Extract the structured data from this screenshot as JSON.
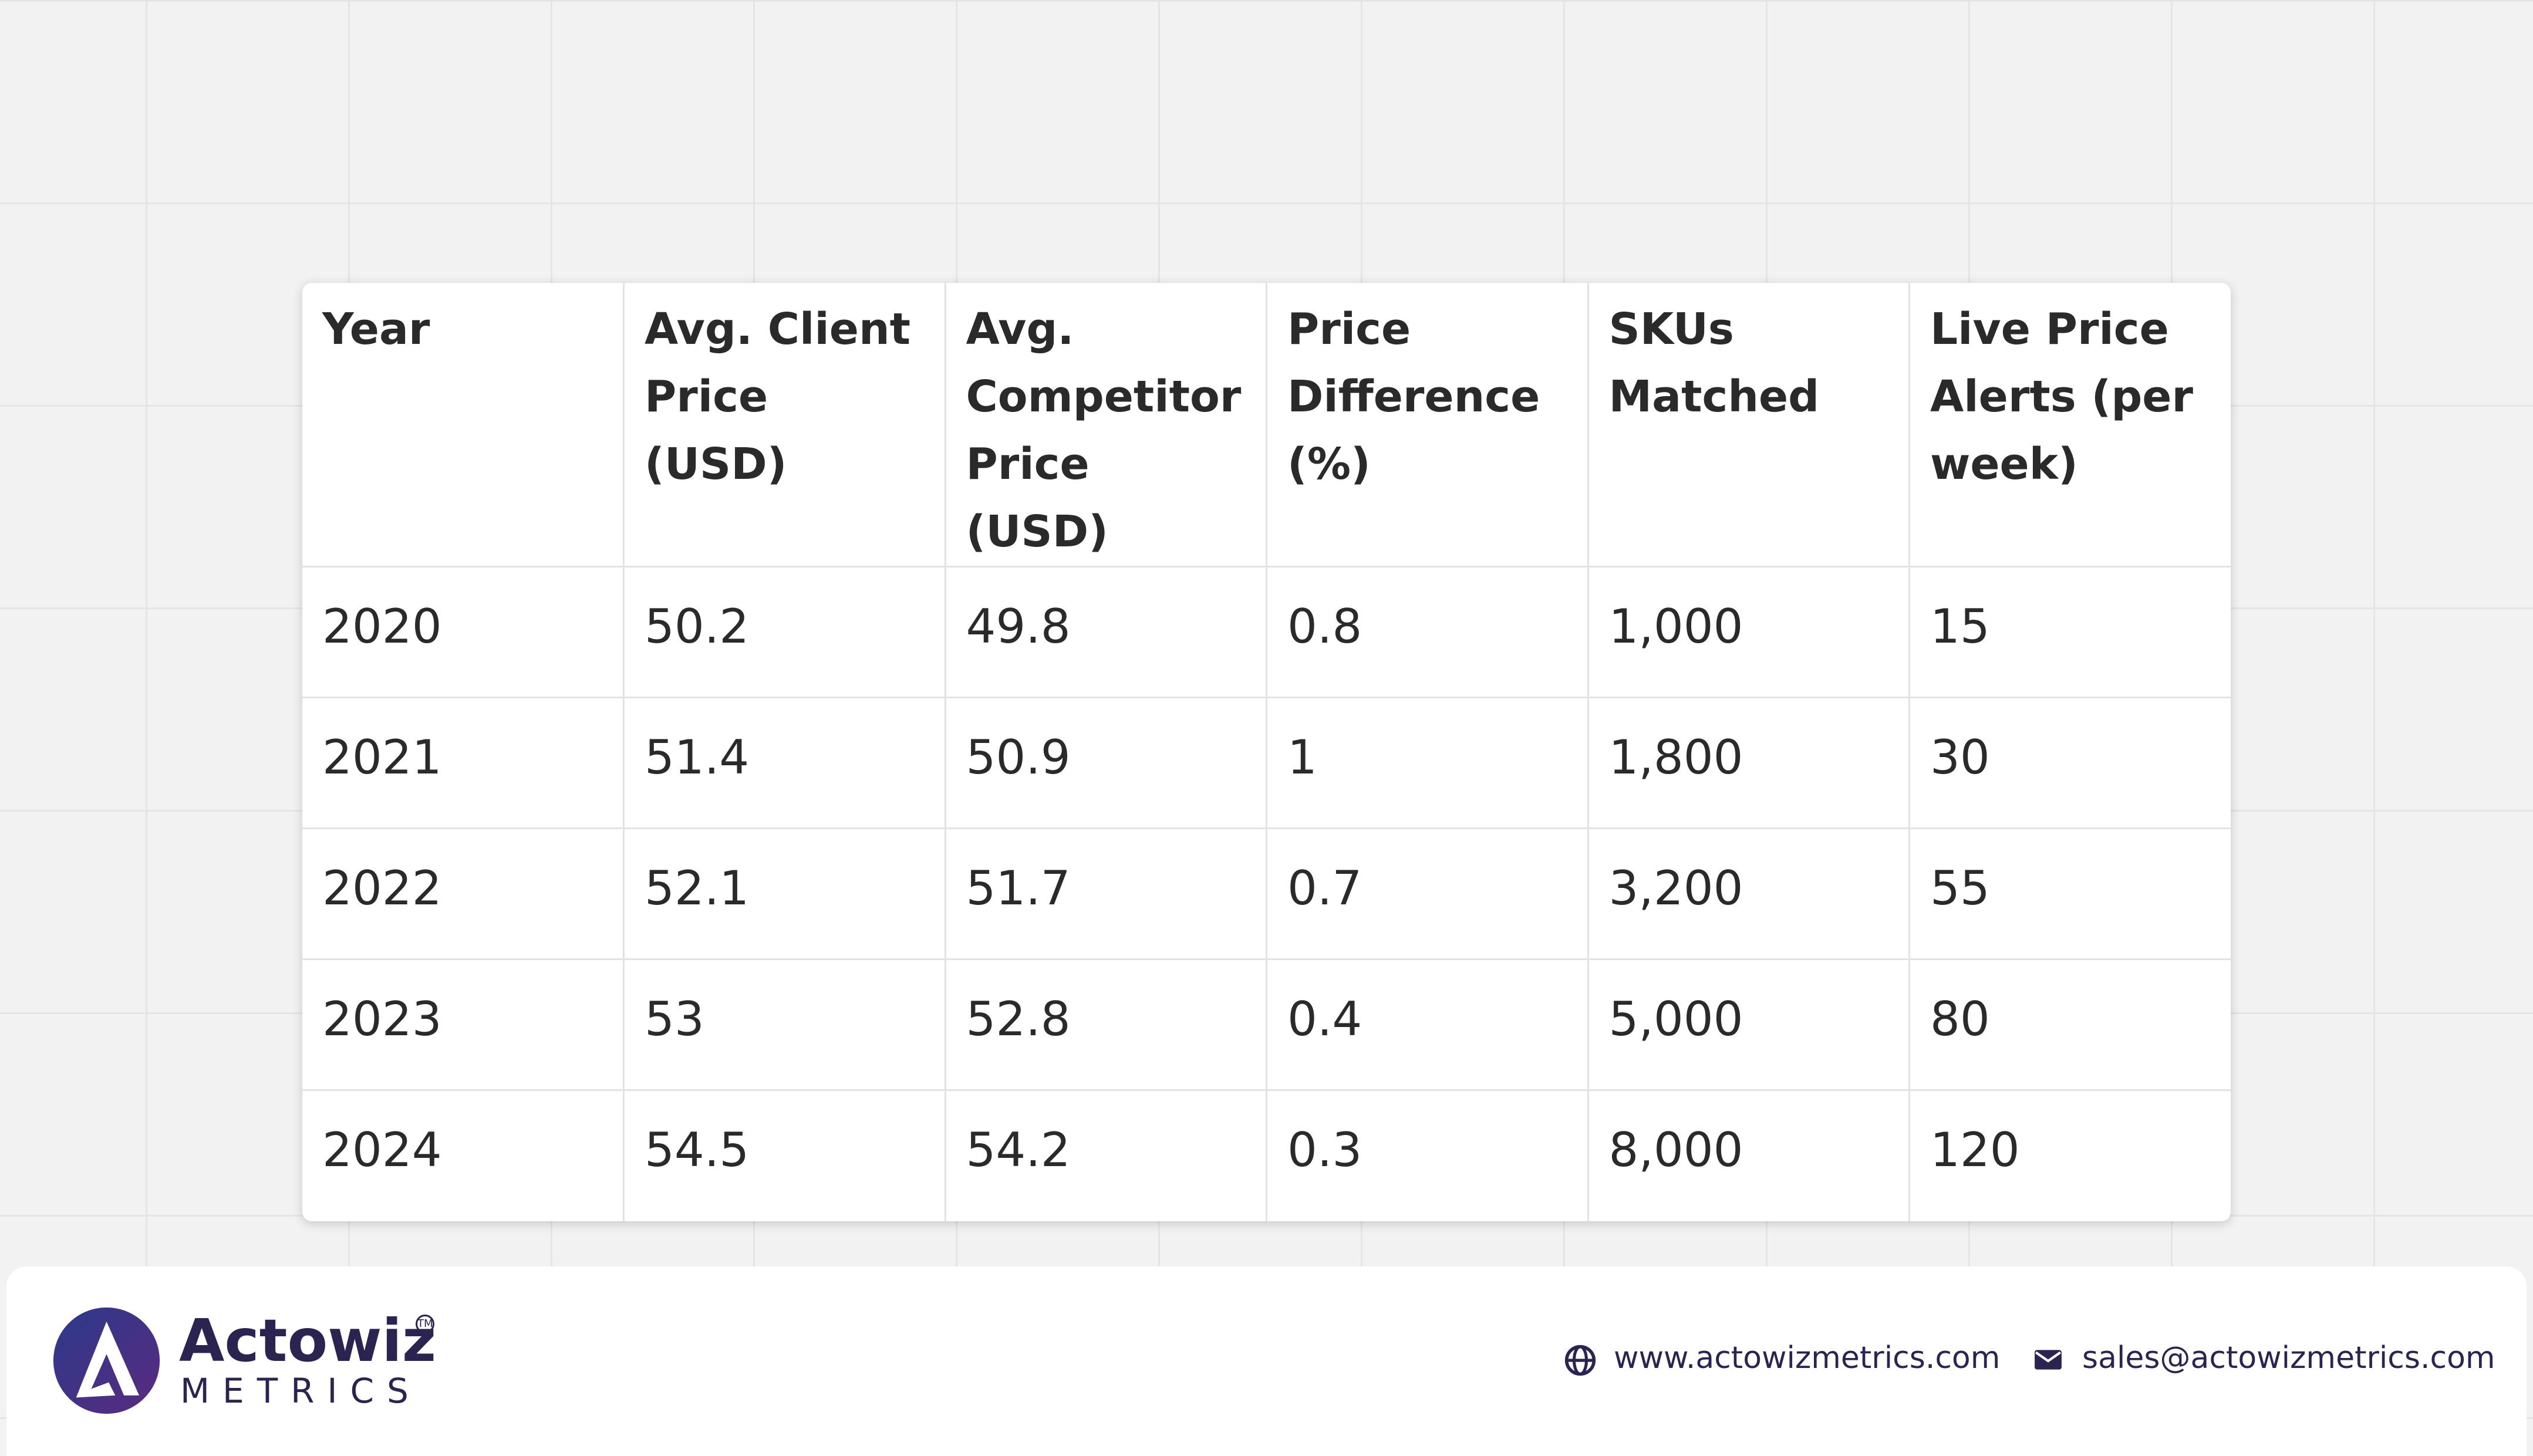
{
  "table": {
    "header": [
      "Year",
      "Avg. Client Price (USD)",
      "Avg. Competitor Price (USD)",
      "Price Difference (%)",
      "SKUs Matched",
      "Live Price Alerts (per week)"
    ],
    "rows": [
      [
        "2020",
        "50.2",
        "49.8",
        "0.8",
        "1,000",
        "15"
      ],
      [
        "2021",
        "51.4",
        "50.9",
        "1",
        "1,800",
        "30"
      ],
      [
        "2022",
        "52.1",
        "51.7",
        "0.7",
        "3,200",
        "55"
      ],
      [
        "2023",
        "53",
        "52.8",
        "0.4",
        "5,000",
        "80"
      ],
      [
        "2024",
        "54.5",
        "54.2",
        "0.3",
        "8,000",
        "120"
      ]
    ]
  },
  "footer": {
    "brand": "Actowiz",
    "tm": "TM",
    "sub": "METRICS",
    "website": "www.actowizmetrics.com",
    "email": "sales@actowizmetrics.com"
  }
}
